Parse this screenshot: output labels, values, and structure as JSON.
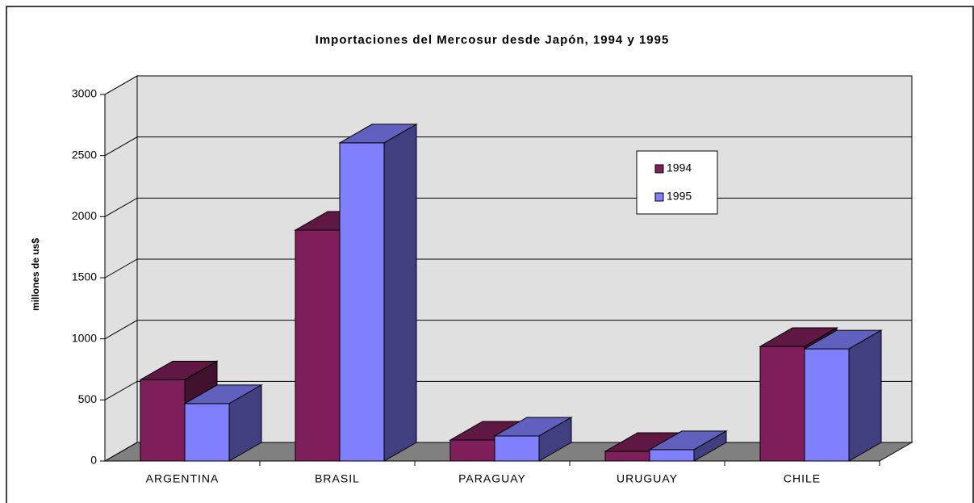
{
  "chart_data": {
    "type": "bar3d",
    "title": "Importaciones del Mercosur desde Japón, 1994 y 1995",
    "y_label": "millones de us$",
    "categories": [
      "ARGENTINA",
      "BRASIL",
      "PARAGUAY",
      "URUGUAY",
      "CHILE"
    ],
    "series": [
      {
        "name": "1994",
        "color": "#7f1f5a",
        "values": [
          665,
          1890,
          172,
          79,
          938
        ]
      },
      {
        "name": "1995",
        "color": "#8080ff",
        "values": [
          470,
          2604,
          205,
          93,
          918
        ]
      }
    ],
    "ylim": [
      0,
      3000
    ],
    "yticks": [
      0,
      500,
      1000,
      1500,
      2000,
      2500,
      3000
    ],
    "grid": true
  }
}
